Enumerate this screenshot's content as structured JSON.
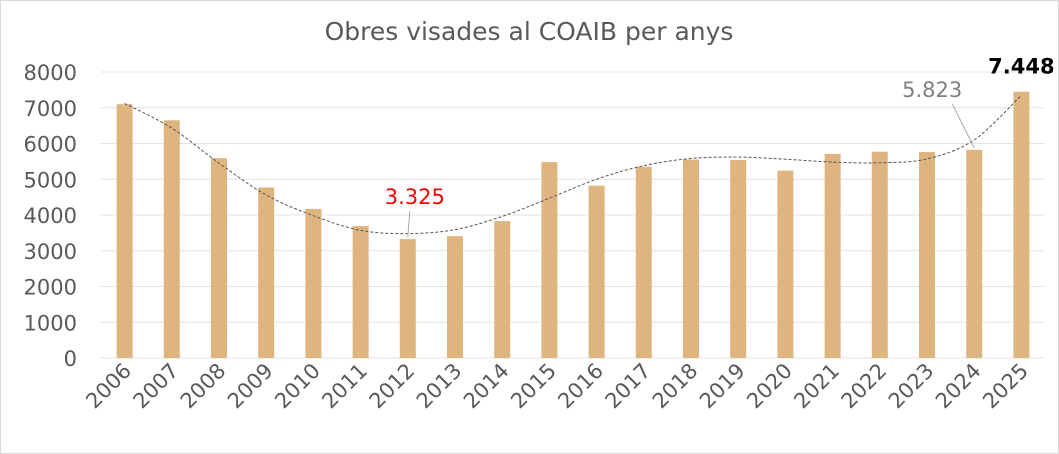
{
  "chart_data": {
    "type": "bar",
    "title": "Obres visades al COAIB per anys",
    "categories": [
      "2006",
      "2007",
      "2008",
      "2009",
      "2010",
      "2011",
      "2012",
      "2013",
      "2014",
      "2015",
      "2016",
      "2017",
      "2018",
      "2019",
      "2020",
      "2021",
      "2022",
      "2023",
      "2024",
      "2025"
    ],
    "values": [
      7100,
      6650,
      5590,
      4770,
      4170,
      3690,
      3325,
      3410,
      3830,
      5480,
      4820,
      5350,
      5550,
      5540,
      5240,
      5710,
      5770,
      5760,
      5823,
      7448
    ],
    "ylim": [
      0,
      8000
    ],
    "yticks": [
      0,
      1000,
      2000,
      3000,
      4000,
      5000,
      6000,
      7000,
      8000
    ],
    "xlabel": "",
    "ylabel": "",
    "grid": true,
    "legend": "none",
    "trendline": "polynomial",
    "trend_values": [
      7120,
      6430,
      5450,
      4560,
      3980,
      3570,
      3480,
      3590,
      3960,
      4470,
      5000,
      5380,
      5580,
      5620,
      5560,
      5480,
      5460,
      5570,
      6100,
      7350
    ],
    "data_labels": [
      {
        "category": "2012",
        "text": "3.325",
        "color": "#ff0000"
      },
      {
        "category": "2024",
        "text": "5.823",
        "color": "#7f7f7f"
      },
      {
        "category": "2025",
        "text": "7.448",
        "color": "#000000"
      }
    ],
    "colors": {
      "bar": "#dfb57f",
      "trend": "#555555",
      "grid": "#e3e3e3",
      "text": "#595959"
    }
  }
}
